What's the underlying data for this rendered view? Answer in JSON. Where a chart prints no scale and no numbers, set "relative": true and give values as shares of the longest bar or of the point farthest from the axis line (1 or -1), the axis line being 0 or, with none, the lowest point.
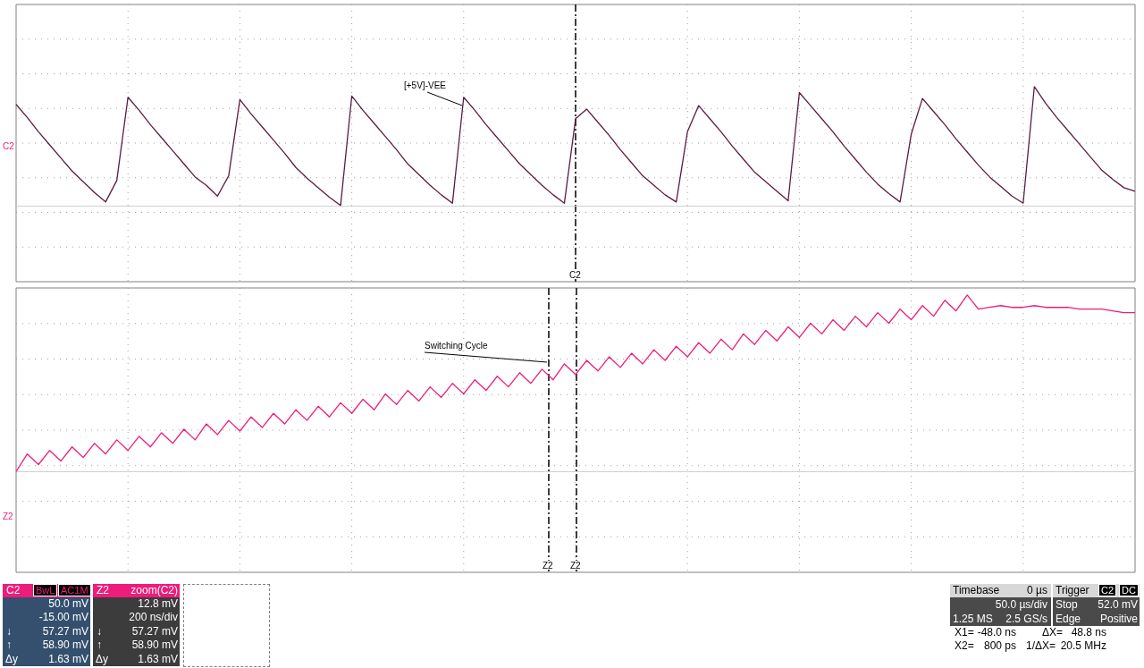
{
  "chart_data": [
    {
      "type": "line",
      "relative": true,
      "grid": true,
      "categories": [
        null,
        null,
        null,
        null,
        null,
        null,
        null,
        null,
        null,
        null,
        null,
        null,
        null,
        null,
        null,
        null,
        null,
        null,
        null,
        null,
        null,
        null,
        null,
        null,
        null,
        null,
        null,
        null,
        null,
        null,
        null,
        null,
        null,
        null,
        null,
        null,
        null,
        null,
        null,
        null,
        null,
        null,
        null,
        null,
        null,
        null,
        null,
        null,
        null,
        null,
        null,
        null,
        null,
        null,
        null,
        null,
        null,
        null,
        null,
        null,
        null,
        null,
        null,
        null,
        null,
        null,
        null,
        null,
        null,
        null,
        null,
        null,
        null,
        null,
        null,
        null,
        null,
        null,
        null,
        null,
        null,
        null,
        null,
        null,
        null,
        null,
        null,
        null,
        null,
        null,
        null,
        null,
        null,
        null,
        null,
        null,
        null,
        null,
        null,
        null,
        null
      ],
      "series": [
        {
          "color": "#5c1a42",
          "values": [
            0.85,
            0.74,
            0.62,
            0.51,
            0.4,
            0.29,
            0.2,
            0.11,
            0.03,
            0.21,
            0.91,
            0.8,
            0.68,
            0.57,
            0.46,
            0.35,
            0.24,
            0.17,
            0.08,
            0.25,
            0.89,
            0.77,
            0.66,
            0.55,
            0.44,
            0.32,
            0.23,
            0.15,
            0.07,
            0.0,
            0.92,
            0.8,
            0.69,
            0.58,
            0.47,
            0.35,
            0.26,
            0.17,
            0.09,
            0.02,
            0.91,
            0.8,
            0.68,
            0.57,
            0.46,
            0.35,
            0.26,
            0.17,
            0.09,
            0.02,
            0.73,
            0.81,
            0.7,
            0.59,
            0.47,
            0.36,
            0.25,
            0.17,
            0.09,
            0.03,
            0.62,
            0.84,
            0.73,
            0.62,
            0.5,
            0.39,
            0.28,
            0.2,
            0.12,
            0.04,
            0.95,
            0.84,
            0.73,
            0.62,
            0.5,
            0.39,
            0.28,
            0.18,
            0.1,
            0.03,
            0.6,
            0.9,
            0.79,
            0.68,
            0.56,
            0.45,
            0.34,
            0.24,
            0.16,
            0.08,
            0.02,
            1.0,
            0.86,
            0.74,
            0.63,
            0.52,
            0.41,
            0.3,
            0.22,
            0.15,
            0.12
          ]
        }
      ],
      "annotations": [
        "[+5V]-VEE",
        "C2",
        "C2"
      ]
    },
    {
      "type": "line",
      "relative": true,
      "grid": true,
      "categories": [
        null,
        null,
        null,
        null,
        null,
        null,
        null,
        null,
        null,
        null,
        null,
        null,
        null,
        null,
        null,
        null,
        null,
        null,
        null,
        null,
        null,
        null,
        null,
        null,
        null,
        null,
        null,
        null,
        null,
        null,
        null,
        null,
        null,
        null,
        null,
        null,
        null,
        null,
        null,
        null,
        null,
        null,
        null,
        null,
        null,
        null,
        null,
        null,
        null,
        null,
        null,
        null,
        null,
        null,
        null,
        null,
        null,
        null,
        null,
        null,
        null,
        null,
        null,
        null,
        null,
        null,
        null,
        null,
        null,
        null,
        null,
        null,
        null,
        null,
        null,
        null,
        null,
        null,
        null,
        null,
        null,
        null,
        null,
        null,
        null,
        null,
        null,
        null,
        null,
        null,
        null,
        null,
        null,
        null,
        null,
        null,
        null,
        null,
        null,
        null,
        null
      ],
      "series": [
        {
          "color": "#ee1c7a",
          "values": [
            0.0,
            0.1,
            0.04,
            0.12,
            0.06,
            0.14,
            0.08,
            0.16,
            0.1,
            0.18,
            0.12,
            0.2,
            0.14,
            0.22,
            0.16,
            0.24,
            0.18,
            0.27,
            0.21,
            0.29,
            0.23,
            0.31,
            0.25,
            0.33,
            0.27,
            0.35,
            0.29,
            0.37,
            0.31,
            0.39,
            0.33,
            0.41,
            0.35,
            0.44,
            0.38,
            0.46,
            0.4,
            0.48,
            0.42,
            0.5,
            0.44,
            0.52,
            0.46,
            0.54,
            0.48,
            0.56,
            0.5,
            0.58,
            0.52,
            0.61,
            0.55,
            0.63,
            0.57,
            0.65,
            0.59,
            0.67,
            0.61,
            0.69,
            0.63,
            0.71,
            0.65,
            0.73,
            0.67,
            0.75,
            0.69,
            0.78,
            0.72,
            0.8,
            0.74,
            0.82,
            0.76,
            0.84,
            0.78,
            0.86,
            0.8,
            0.88,
            0.82,
            0.9,
            0.84,
            0.92,
            0.86,
            0.94,
            0.88,
            0.97,
            0.91,
            1.0,
            0.92,
            0.93,
            0.94,
            0.93,
            0.93,
            0.94,
            0.93,
            0.93,
            0.93,
            0.92,
            0.92,
            0.92,
            0.91,
            0.9,
            0.9
          ]
        }
      ],
      "annotations": [
        "Switching Cycle",
        "Z2",
        "Z2",
        "Z2"
      ]
    },
    {
      "type": "other",
      "annotations": [
        "C2",
        "BwL",
        "AC1M",
        "50.0 mV",
        "-15.00 mV",
        "↓",
        "57.27 mV",
        "↑",
        "58.90 mV",
        "Δy",
        "1.63 mV",
        "Z2",
        "zoom(C2)",
        "12.8 mV",
        "200 ns/div",
        "↓",
        "57.27 mV",
        "↑",
        "58.90 mV",
        "Δy",
        "1.63 mV",
        "Timebase",
        "0 µs",
        "50.0 µs/div",
        "1.25 MS",
        "2.5 GS/s",
        "Trigger",
        "C2",
        "DC",
        "Stop",
        "52.0 mV",
        "Edge",
        "Positive",
        "X1=",
        "-48.0 ns",
        "ΔX=",
        "48.8 ns",
        "X2=",
        "800 ps",
        "1/ΔX=",
        "20.5 MHz"
      ]
    }
  ]
}
